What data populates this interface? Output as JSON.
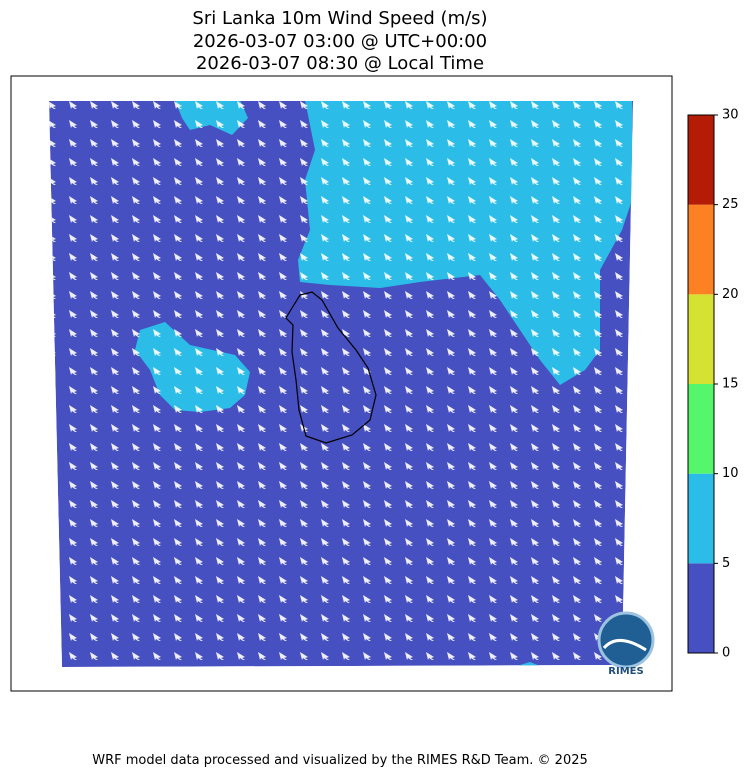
{
  "title": [
    "Sri Lanka 10m Wind Speed (m/s)",
    "2026-03-07 03:00 @ UTC+00:00",
    "2026-03-07 08:30 @ Local Time"
  ],
  "colorbar": {
    "ticks": [
      0,
      5,
      10,
      15,
      20,
      25,
      30
    ],
    "colors": [
      "#4650c0",
      "#2bbde8",
      "#55f56c",
      "#d5e231",
      "#fd8022",
      "#b51c06"
    ]
  },
  "logo": "RIMES",
  "footer": "WRF model data processed and visualized by the RIMES R&D Team. © 2025"
}
